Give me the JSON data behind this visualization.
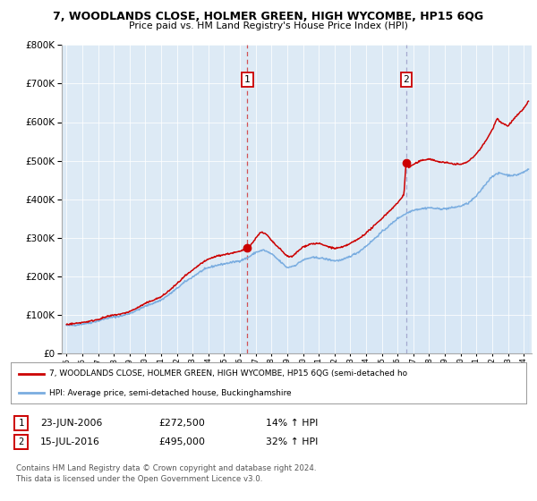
{
  "title": "7, WOODLANDS CLOSE, HOLMER GREEN, HIGH WYCOMBE, HP15 6QG",
  "subtitle": "Price paid vs. HM Land Registry's House Price Index (HPI)",
  "xlim": [
    1994.7,
    2024.5
  ],
  "ylim": [
    0,
    800000
  ],
  "yticks": [
    0,
    100000,
    200000,
    300000,
    400000,
    500000,
    600000,
    700000,
    800000
  ],
  "ytick_labels": [
    "£0",
    "£100K",
    "£200K",
    "£300K",
    "£400K",
    "£500K",
    "£600K",
    "£700K",
    "£800K"
  ],
  "xticks": [
    1995,
    1996,
    1997,
    1998,
    1999,
    2000,
    2001,
    2002,
    2003,
    2004,
    2005,
    2006,
    2007,
    2008,
    2009,
    2010,
    2011,
    2012,
    2013,
    2014,
    2015,
    2016,
    2017,
    2018,
    2019,
    2020,
    2021,
    2022,
    2023,
    2024
  ],
  "sale1_x": 2006.478,
  "sale1_y": 272500,
  "sale2_x": 2016.537,
  "sale2_y": 495000,
  "red_color": "#cc0000",
  "blue_color": "#7aade0",
  "blue_fill_color": "#d0e4f5",
  "vline1_color": "#cc0000",
  "vline2_color": "#8888bb",
  "background_color": "#ddeaf5",
  "legend_label_red": "7, WOODLANDS CLOSE, HOLMER GREEN, HIGH WYCOMBE, HP15 6QG (semi-detached ho",
  "legend_label_blue": "HPI: Average price, semi-detached house, Buckinghamshire",
  "table_row1": [
    "1",
    "23-JUN-2006",
    "£272,500",
    "14% ↑ HPI"
  ],
  "table_row2": [
    "2",
    "15-JUL-2016",
    "£495,000",
    "32% ↑ HPI"
  ],
  "footnote1": "Contains HM Land Registry data © Crown copyright and database right 2024.",
  "footnote2": "This data is licensed under the Open Government Licence v3.0."
}
